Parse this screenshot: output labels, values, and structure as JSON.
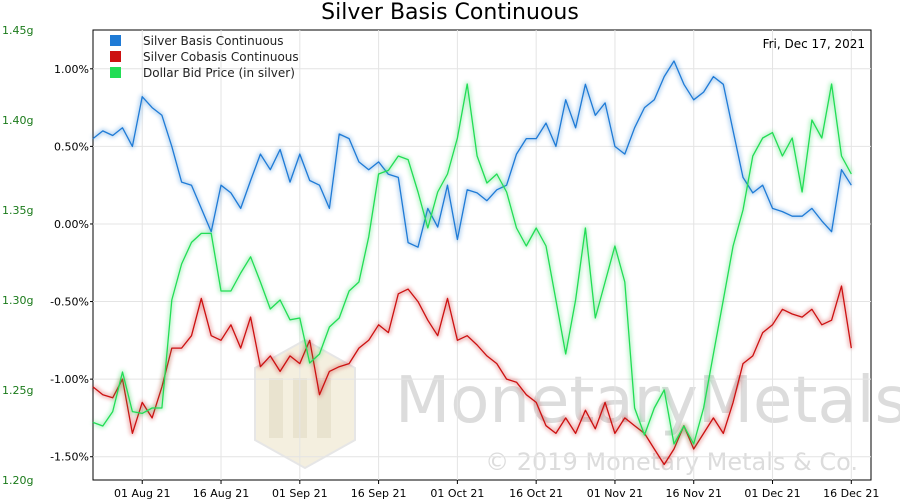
{
  "chart_data": {
    "type": "line",
    "title": "Silver Basis Continuous",
    "date_label": "Fri, Dec 17, 2021",
    "watermark": {
      "brand": "MonetaryMetals",
      "copyright": "© 2019 Monetary Metals & Co."
    },
    "x_tick_labels": [
      "01 Aug 21",
      "16 Aug 21",
      "01 Sep 21",
      "16 Sep 21",
      "01 Oct 21",
      "16 Oct 21",
      "01 Nov 21",
      "16 Nov 21",
      "01 Dec 21",
      "16 Dec 21"
    ],
    "x_tick_index": [
      5,
      13,
      21,
      29,
      37,
      45,
      53,
      61,
      69,
      77
    ],
    "x_range": [
      0,
      79
    ],
    "left_axis": {
      "ticks": [
        "1.45g",
        "1.40g",
        "1.35g",
        "1.30g",
        "1.25g",
        "1.20g"
      ],
      "range": [
        1.2,
        1.45
      ],
      "color": "#1a7a1a"
    },
    "right_axis": {
      "ticks": [
        "1.00%",
        "0.50%",
        "0.00%",
        "-0.50%",
        "-1.00%",
        "-1.50%"
      ],
      "range": [
        -1.65,
        1.25
      ],
      "color": "#000000"
    },
    "series": [
      {
        "name": "Silver Basis Continuous",
        "color": "#1f7bd6",
        "axis": "right",
        "values": [
          0.55,
          0.6,
          0.57,
          0.62,
          0.5,
          0.82,
          0.75,
          0.7,
          0.5,
          0.27,
          0.25,
          0.1,
          -0.05,
          0.25,
          0.2,
          0.1,
          0.28,
          0.45,
          0.35,
          0.48,
          0.27,
          0.45,
          0.28,
          0.25,
          0.1,
          0.58,
          0.55,
          0.4,
          0.35,
          0.4,
          0.32,
          0.3,
          -0.12,
          -0.15,
          0.1,
          -0.02,
          0.25,
          -0.1,
          0.22,
          0.2,
          0.15,
          0.22,
          0.25,
          0.45,
          0.55,
          0.55,
          0.65,
          0.5,
          0.8,
          0.62,
          0.9,
          0.7,
          0.78,
          0.5,
          0.45,
          0.62,
          0.75,
          0.8,
          0.95,
          1.05,
          0.9,
          0.8,
          0.85,
          0.95,
          0.9,
          0.6,
          0.3,
          0.2,
          0.25,
          0.1,
          0.08,
          0.05,
          0.05,
          0.1,
          0.02,
          -0.05,
          0.35,
          0.25
        ]
      },
      {
        "name": "Silver Cobasis Continuous",
        "color": "#cc1111",
        "axis": "right",
        "values": [
          -1.05,
          -1.1,
          -1.12,
          -1.0,
          -1.35,
          -1.15,
          -1.25,
          -1.05,
          -0.8,
          -0.8,
          -0.72,
          -0.48,
          -0.72,
          -0.75,
          -0.65,
          -0.8,
          -0.6,
          -0.92,
          -0.85,
          -0.95,
          -0.85,
          -0.9,
          -0.75,
          -1.1,
          -0.95,
          -0.92,
          -0.9,
          -0.8,
          -0.75,
          -0.65,
          -0.7,
          -0.45,
          -0.42,
          -0.5,
          -0.62,
          -0.72,
          -0.48,
          -0.75,
          -0.72,
          -0.78,
          -0.85,
          -0.9,
          -1.0,
          -1.02,
          -1.1,
          -1.15,
          -1.3,
          -1.35,
          -1.25,
          -1.35,
          -1.2,
          -1.32,
          -1.15,
          -1.35,
          -1.25,
          -1.3,
          -1.35,
          -1.45,
          -1.55,
          -1.45,
          -1.3,
          -1.45,
          -1.35,
          -1.25,
          -1.35,
          -1.15,
          -0.9,
          -0.85,
          -0.7,
          -0.65,
          -0.55,
          -0.58,
          -0.6,
          -0.55,
          -0.65,
          -0.62,
          -0.4,
          -0.8
        ]
      },
      {
        "name": "Dollar Bid Price (in silver)",
        "color": "#22dd55",
        "axis": "left",
        "values": [
          1.232,
          1.23,
          1.238,
          1.26,
          1.238,
          1.237,
          1.24,
          1.24,
          1.3,
          1.32,
          1.332,
          1.337,
          1.337,
          1.305,
          1.305,
          1.315,
          1.324,
          1.31,
          1.295,
          1.3,
          1.289,
          1.29,
          1.265,
          1.27,
          1.285,
          1.29,
          1.305,
          1.31,
          1.335,
          1.37,
          1.372,
          1.38,
          1.378,
          1.36,
          1.34,
          1.36,
          1.37,
          1.39,
          1.42,
          1.38,
          1.365,
          1.37,
          1.36,
          1.34,
          1.33,
          1.34,
          1.33,
          1.3,
          1.27,
          1.3,
          1.34,
          1.29,
          1.31,
          1.33,
          1.31,
          1.24,
          1.225,
          1.24,
          1.25,
          1.22,
          1.23,
          1.22,
          1.24,
          1.27,
          1.3,
          1.33,
          1.35,
          1.38,
          1.39,
          1.393,
          1.38,
          1.39,
          1.36,
          1.4,
          1.39,
          1.42,
          1.38,
          1.37
        ]
      }
    ]
  }
}
